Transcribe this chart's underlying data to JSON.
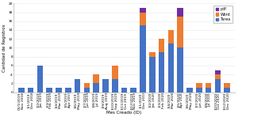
{
  "categories": [
    "01/1/2019\nNov 2018",
    "1/1/2019\nDec 2018",
    "1/2/2019\nJan 2019",
    "1/3/2019\nFeb 2019",
    "1/4/2019\nMar 2019",
    "1/5/2019\nApr 2019",
    "1/6/2019\nMay 2019",
    "1/7/2019\nJun 2019",
    "1/8/2019\nJul 2019",
    "1/9/2019\nAug 2019",
    "1/10/2019\nSep 2019",
    "1/11/2019\nOct 2019",
    "1/12/2019\nNov 2019",
    "1/1/2020\nDec 2019",
    "1/2/2020\nJan 2020",
    "1/3/2020\nFeb 2020",
    "1/4/2020\nMar 2020",
    "1/5/2020\nApr 2020",
    "1/6/2020\nMay 2020",
    "1/7/2020\nJun 2020",
    "1/8/2020\nJul 2020",
    "1/10/2020\nOct 2020",
    "1/12/2020\nDec 2020"
  ],
  "blue": [
    1,
    1,
    6,
    1,
    1,
    1,
    3,
    1,
    2,
    3,
    3,
    1,
    1,
    15,
    8,
    9,
    11,
    10,
    1,
    1,
    1,
    3,
    1
  ],
  "orange": [
    0,
    0,
    0,
    0,
    0,
    0,
    0,
    1,
    2,
    0,
    3,
    0,
    0,
    3,
    1,
    3,
    3,
    7,
    0,
    1,
    1,
    1,
    1
  ],
  "purple": [
    0,
    0,
    0,
    0,
    0,
    0,
    0,
    0,
    0,
    0,
    0,
    0,
    0,
    1,
    0,
    0,
    0,
    2,
    0,
    0,
    0,
    1,
    0
  ],
  "colors": {
    "blue": "#4472c4",
    "orange": "#ed7d31",
    "purple": "#7030a0"
  },
  "legend_labels": [
    "pdf",
    "Word",
    "Tarea"
  ],
  "ylabel": "Cantidad de Registros",
  "xlabel": "Mes Creado (ID)",
  "ylim": [
    0,
    20
  ],
  "yticks": [
    0,
    2,
    4,
    6,
    8,
    10,
    12,
    14,
    16,
    18,
    20
  ],
  "bar_width": 0.65,
  "axis_fontsize": 4.0,
  "tick_fontsize": 3.2,
  "legend_fontsize": 3.5,
  "bg_color": "#ffffff",
  "grid_color": "#e8e8e8"
}
